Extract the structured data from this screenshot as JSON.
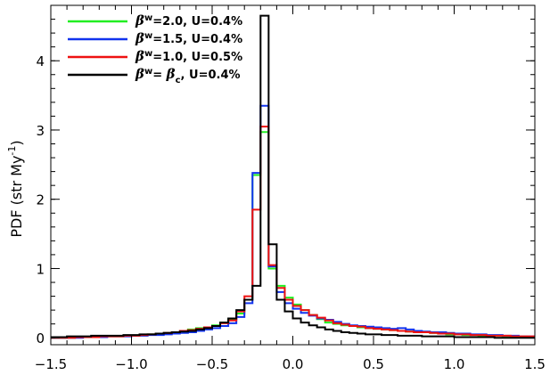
{
  "chart_data": {
    "type": "line",
    "drawstyle": "steps",
    "title": "",
    "xlabel": "",
    "ylabel": "PDF (str My",
    "ylabel_sup": "-1",
    "ylabel_close": ")",
    "xlim": [
      -1.5,
      1.5
    ],
    "ylim": [
      -0.1,
      4.8
    ],
    "x_ticks": [
      -1.5,
      -1.0,
      -0.5,
      0.0,
      0.5,
      1.0,
      1.5
    ],
    "x_tick_labels": [
      "−1.5",
      "−1.0",
      "−0.5",
      "0.0",
      "0.5",
      "1.0",
      "1.5"
    ],
    "y_ticks": [
      0,
      1,
      2,
      3,
      4
    ],
    "y_tick_labels": [
      "0",
      "1",
      "2",
      "3",
      "4"
    ],
    "bin_width": 0.05,
    "bin_start": -1.5,
    "legend_position": "top-left",
    "series": [
      {
        "name": "β_w=2.0, U=0.4%",
        "legend": {
          "beta": "β",
          "sub": "w",
          "text": "=2.0,   U=0.4%"
        },
        "color": "#22ee22",
        "values": [
          0.0,
          0.0,
          0.0,
          0.01,
          0.01,
          0.01,
          0.02,
          0.02,
          0.02,
          0.03,
          0.03,
          0.04,
          0.05,
          0.06,
          0.07,
          0.08,
          0.1,
          0.12,
          0.14,
          0.15,
          0.18,
          0.22,
          0.27,
          0.35,
          0.55,
          2.35,
          2.97,
          1.0,
          0.75,
          0.58,
          0.48,
          0.4,
          0.33,
          0.27,
          0.22,
          0.2,
          0.18,
          0.17,
          0.15,
          0.14,
          0.13,
          0.12,
          0.11,
          0.1,
          0.09,
          0.08,
          0.08,
          0.07,
          0.06,
          0.05,
          0.05,
          0.04,
          0.04,
          0.03,
          0.03,
          0.03,
          0.02,
          0.02,
          0.02,
          0.01
        ]
      },
      {
        "name": "β_w=1.5, U=0.4%",
        "legend": {
          "beta": "β",
          "sub": "w",
          "text": "=1.5,   U=0.4%"
        },
        "color": "#1133ee",
        "values": [
          0.0,
          0.0,
          0.0,
          0.0,
          0.01,
          0.01,
          0.01,
          0.02,
          0.02,
          0.02,
          0.03,
          0.03,
          0.04,
          0.04,
          0.05,
          0.06,
          0.07,
          0.08,
          0.1,
          0.12,
          0.14,
          0.17,
          0.21,
          0.3,
          0.5,
          2.38,
          3.35,
          1.03,
          0.66,
          0.5,
          0.42,
          0.36,
          0.32,
          0.28,
          0.26,
          0.23,
          0.2,
          0.18,
          0.17,
          0.16,
          0.15,
          0.14,
          0.13,
          0.14,
          0.12,
          0.1,
          0.09,
          0.08,
          0.08,
          0.07,
          0.06,
          0.06,
          0.05,
          0.05,
          0.04,
          0.04,
          0.03,
          0.03,
          0.02,
          0.02
        ]
      },
      {
        "name": "β_w=1.0, U=0.5%",
        "legend": {
          "beta": "β",
          "sub": "w",
          "text": "=1.0,   U=0.5%"
        },
        "color": "#ee1111",
        "values": [
          0.0,
          0.0,
          0.0,
          0.01,
          0.01,
          0.01,
          0.02,
          0.02,
          0.02,
          0.03,
          0.03,
          0.04,
          0.05,
          0.06,
          0.07,
          0.08,
          0.1,
          0.11,
          0.13,
          0.15,
          0.17,
          0.21,
          0.25,
          0.38,
          0.6,
          1.85,
          3.05,
          1.05,
          0.72,
          0.55,
          0.46,
          0.4,
          0.33,
          0.29,
          0.25,
          0.21,
          0.19,
          0.17,
          0.16,
          0.14,
          0.13,
          0.12,
          0.11,
          0.1,
          0.09,
          0.08,
          0.08,
          0.07,
          0.06,
          0.06,
          0.05,
          0.05,
          0.04,
          0.04,
          0.03,
          0.03,
          0.03,
          0.02,
          0.02,
          0.02
        ]
      },
      {
        "name": "β_w= β_c, U=0.4%",
        "legend": {
          "beta": "β",
          "sub": "w",
          "text": "=  ",
          "beta2": "β",
          "sub2": "c",
          "text2": ",   U=0.4%"
        },
        "color": "#000000",
        "values": [
          0.01,
          0.01,
          0.02,
          0.02,
          0.02,
          0.03,
          0.03,
          0.03,
          0.03,
          0.04,
          0.04,
          0.05,
          0.05,
          0.06,
          0.07,
          0.08,
          0.09,
          0.1,
          0.12,
          0.14,
          0.17,
          0.22,
          0.28,
          0.4,
          0.55,
          0.75,
          4.65,
          1.35,
          0.55,
          0.38,
          0.28,
          0.22,
          0.18,
          0.15,
          0.12,
          0.1,
          0.08,
          0.07,
          0.06,
          0.05,
          0.05,
          0.04,
          0.04,
          0.03,
          0.03,
          0.03,
          0.02,
          0.02,
          0.02,
          0.02,
          0.01,
          0.01,
          0.01,
          0.01,
          0.01,
          0.0,
          0.0,
          0.0,
          0.0,
          0.0
        ]
      }
    ]
  }
}
